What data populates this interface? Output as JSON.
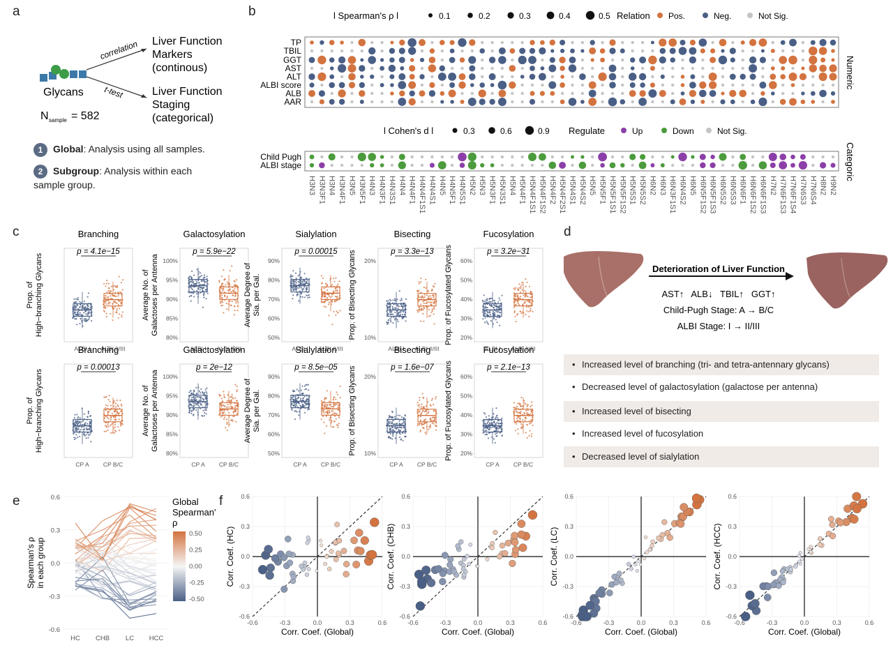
{
  "panel_labels": {
    "a": "a",
    "b": "b",
    "c": "c",
    "d": "d",
    "e": "e",
    "f": "f"
  },
  "panel_a": {
    "correlation_label": "correlation",
    "ttest_label": "t-test",
    "glycans_label": "Glycans",
    "target1": [
      "Liver Function",
      "Markers",
      "(continous)"
    ],
    "target2": [
      "Liver Function",
      "Staging",
      "(categorical)"
    ],
    "n_prefix": "N",
    "n_sub": "sample",
    "n_value": "= 582",
    "items": [
      {
        "num": "1",
        "bold": "Global",
        "text": ": Analysis using all samples."
      },
      {
        "num": "2",
        "bold": "Subgroup",
        "text": ": Analysis within each"
      }
    ],
    "item2_cont": "sample group."
  },
  "panel_b": {
    "legend_top": {
      "title": "l Spearman's ρ l",
      "sizes": [
        "0.1",
        "0.2",
        "0.3",
        "0.4",
        "0.5"
      ],
      "relation_title": "Relation",
      "relations": [
        "Pos.",
        "Neg.",
        "Not Sig."
      ]
    },
    "legend_mid": {
      "title": "l Cohen's d l",
      "sizes": [
        "0.3",
        "0.6",
        "0.9"
      ],
      "regulate_title": "Regulate",
      "regulates": [
        "Up",
        "Down",
        "Not Sig."
      ]
    },
    "numeric_rows": [
      "TP",
      "TBIL",
      "GGT",
      "AST",
      "ALT",
      "ALBI score",
      "ALB",
      "AAR"
    ],
    "categoric_rows": [
      "Child Pugh",
      "ALBI stage"
    ],
    "numeric_label": "Numeric",
    "categoric_label": "Categoric",
    "columns": [
      "H3N3",
      "H3N3F1",
      "H3N4",
      "H3N4F1",
      "H3N5",
      "H3N5F1",
      "H4N3",
      "H4N3F1",
      "H4N3S1",
      "H4N4",
      "H4N4F1",
      "H4N4F1S1",
      "H4N4S1",
      "H4N5",
      "H4N5F1",
      "H4N5S1",
      "H5N2",
      "H5N3",
      "H5N3F1",
      "H5N3S1",
      "H5N4",
      "H5N4F1",
      "H5N4F1S1",
      "H5N4F1S2",
      "H5N4F2",
      "H5N4F2S1",
      "H5N4S1",
      "H5N4S2",
      "H5N5",
      "H5N5F1",
      "H5N5F1S1",
      "H5N5F1S2",
      "H5N5S1",
      "H5N5S2",
      "H6N2",
      "H6N3",
      "H6N3F1S1",
      "H6N4S2",
      "H6N5",
      "H6N5F1S2",
      "H6N5F1S3",
      "H6N5S2",
      "H6N5S3",
      "H6N6F1",
      "H6N6F1S2",
      "H6N6F1S3",
      "H7N2",
      "H7N6F1S3",
      "H7N6F1S4",
      "H7N6S3",
      "H7N6S4",
      "H8N2",
      "H9N2"
    ],
    "colors": {
      "pos": "#d3733f",
      "neg": "#4a5f86",
      "ns": "#c4c4c4",
      "up": "#8c3fa8",
      "down": "#4c9b3c"
    }
  },
  "panel_c": {
    "plots": [
      {
        "title": "Branching",
        "p": "p = 4.1e−15",
        "ylabel": [
          "Prop. of",
          "High−branching Glycans"
        ],
        "yticks": [],
        "groups": [
          "ALBI I",
          "ALBI II/III"
        ]
      },
      {
        "title": "Galactosylation",
        "p": "p = 5.9e−22",
        "ylabel": [
          "Average No. of",
          "Galactoses per Antenna"
        ],
        "yticks": [
          "80%",
          "85%",
          "90%",
          "95%",
          "100%"
        ],
        "groups": [
          "ALBI I",
          "ALBI II/III"
        ]
      },
      {
        "title": "Sialylation",
        "p": "p = 0.00015",
        "ylabel": [
          "Average Degree of",
          "Sia. per Gal."
        ],
        "yticks": [
          "50%",
          "60%",
          "70%",
          "80%",
          "90%"
        ],
        "groups": [
          "ALBI I",
          "ALBI II/III"
        ]
      },
      {
        "title": "Bisecting",
        "p": "p = 3.3e−13",
        "ylabel": [
          "Prop. of Bisecting Glycans"
        ],
        "yticks": [
          "10%",
          "20%"
        ],
        "groups": [
          "ALBI I",
          "ALBI II/III"
        ]
      },
      {
        "title": "Fucosylation",
        "p": "p = 3.2e−31",
        "ylabel": [
          "Prop. of Fucosylated Glycans"
        ],
        "yticks": [
          "20%",
          "30%",
          "40%",
          "50%",
          "60%"
        ],
        "groups": [
          "ALBI I",
          "ALBI II/III"
        ]
      },
      {
        "title": "Branching",
        "p": "p = 0.00013",
        "ylabel": [
          "Prop. of",
          "High−branching Glycans"
        ],
        "yticks": [],
        "groups": [
          "CP A",
          "CP B/C"
        ]
      },
      {
        "title": "Galactosylation",
        "p": "p = 2e−12",
        "ylabel": [
          "Average No. of",
          "Galactoses per Antenna"
        ],
        "yticks": [
          "80%",
          "85%",
          "90%",
          "95%",
          "100%"
        ],
        "groups": [
          "CP A",
          "CP B/C"
        ]
      },
      {
        "title": "Sialylation",
        "p": "p = 8.5e−05",
        "ylabel": [
          "Average Degree of",
          "Sia. per Gal."
        ],
        "yticks": [
          "50%",
          "60%",
          "70%",
          "80%",
          "90%"
        ],
        "groups": [
          "CP A",
          "CP B/C"
        ]
      },
      {
        "title": "Bisecting",
        "p": "p = 1.6e−07",
        "ylabel": [
          "Prop. of Bisecting Glycans"
        ],
        "yticks": [
          "10%",
          "20%"
        ],
        "groups": [
          "CP A",
          "CP B/C"
        ]
      },
      {
        "title": "Fucosylation",
        "p": "p = 2.1e−13",
        "ylabel": [
          "Prop. of Fucosylated Glycans"
        ],
        "yticks": [
          "20%",
          "30%",
          "40%",
          "50%",
          "60%"
        ],
        "groups": [
          "CP A",
          "CP B/C"
        ]
      }
    ]
  },
  "panel_d": {
    "arrow_title": "Deterioration of Liver Function",
    "markers": "AST↑   ALB↓   TBIL↑   GGT↑",
    "child_pugh": "Child-Pugh Stage: A → B/C",
    "albi": "ALBI Stage: I → II/III",
    "bullets": [
      "Increased level of branching (tri- and tetra-antennary glycans)",
      "Decreased level of galactosylation (galactose per antenna)",
      "Increased level of bisecting",
      "Increased level of fucosylation",
      "Decreased level of sialylation"
    ]
  },
  "panel_e": {
    "ylabel": [
      "Spearman's ρ",
      "in each group"
    ],
    "yticks": [
      "0.6",
      "0.3",
      "0.0",
      "-0.3",
      "-0.6"
    ],
    "xticks": [
      "HC",
      "CHB",
      "LC",
      "HCC"
    ],
    "legend_title": [
      "Global",
      "Spearman's",
      "ρ"
    ],
    "legend_ticks": [
      "0.50",
      "0.25",
      "0.00",
      "-0.25",
      "-0.50"
    ]
  },
  "panel_f": {
    "xlabel": "Corr. Coef. (Global)",
    "ticks": [
      "-0.6",
      "-0.3",
      "0.0",
      "0.3",
      "0.6"
    ],
    "plots": [
      {
        "ylabel": "Corr. Coef. (HC)"
      },
      {
        "ylabel": "Corr. Coef. (CHB)"
      },
      {
        "ylabel": "Corr. Coef. (LC)"
      },
      {
        "ylabel": "Corr. Coef. (HCC)"
      }
    ]
  }
}
